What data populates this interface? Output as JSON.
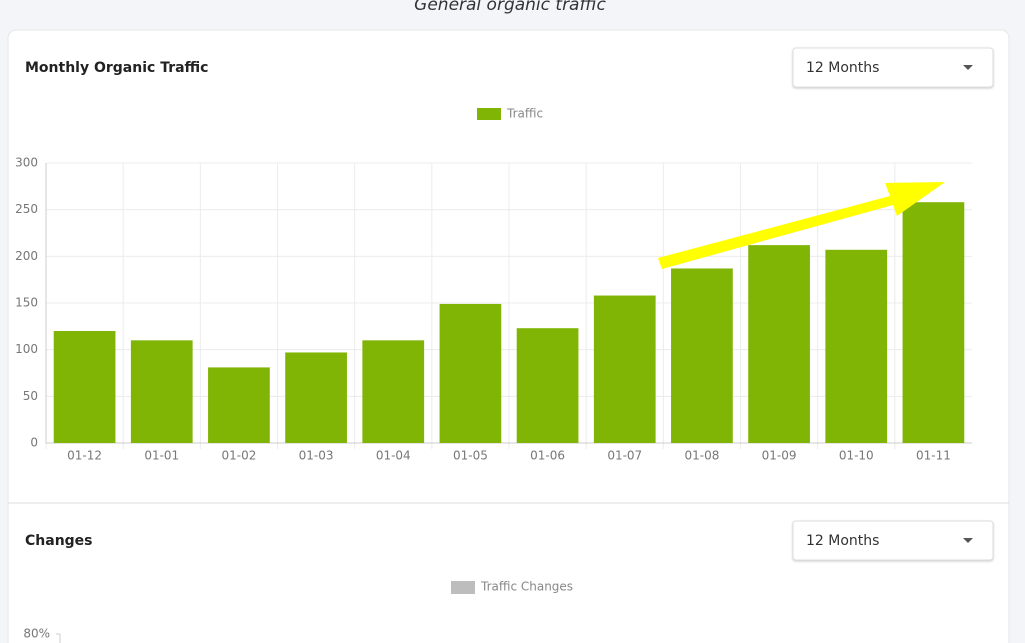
{
  "page_title": "General organic traffic",
  "chart_data": [
    {
      "type": "bar",
      "title": "Monthly Organic Traffic",
      "period": "12 Months",
      "categories": [
        "01-12",
        "01-01",
        "01-02",
        "01-03",
        "01-04",
        "01-05",
        "01-06",
        "01-07",
        "01-08",
        "01-09",
        "01-10",
        "01-11"
      ],
      "series": [
        {
          "name": "Traffic",
          "color": "#80b506",
          "values": [
            120,
            110,
            81,
            97,
            110,
            149,
            123,
            158,
            187,
            212,
            207,
            258
          ]
        }
      ],
      "ylim": [
        0,
        300
      ],
      "yticks": [
        0,
        50,
        100,
        150,
        200,
        250,
        300
      ],
      "grid": true
    },
    {
      "type": "bar",
      "title": "Changes",
      "period": "12 Months",
      "series": [
        {
          "name": "Traffic Changes",
          "color": "#bdbdbd"
        }
      ],
      "yticks": [
        {
          "value": 80,
          "label": "80%"
        }
      ]
    }
  ]
}
